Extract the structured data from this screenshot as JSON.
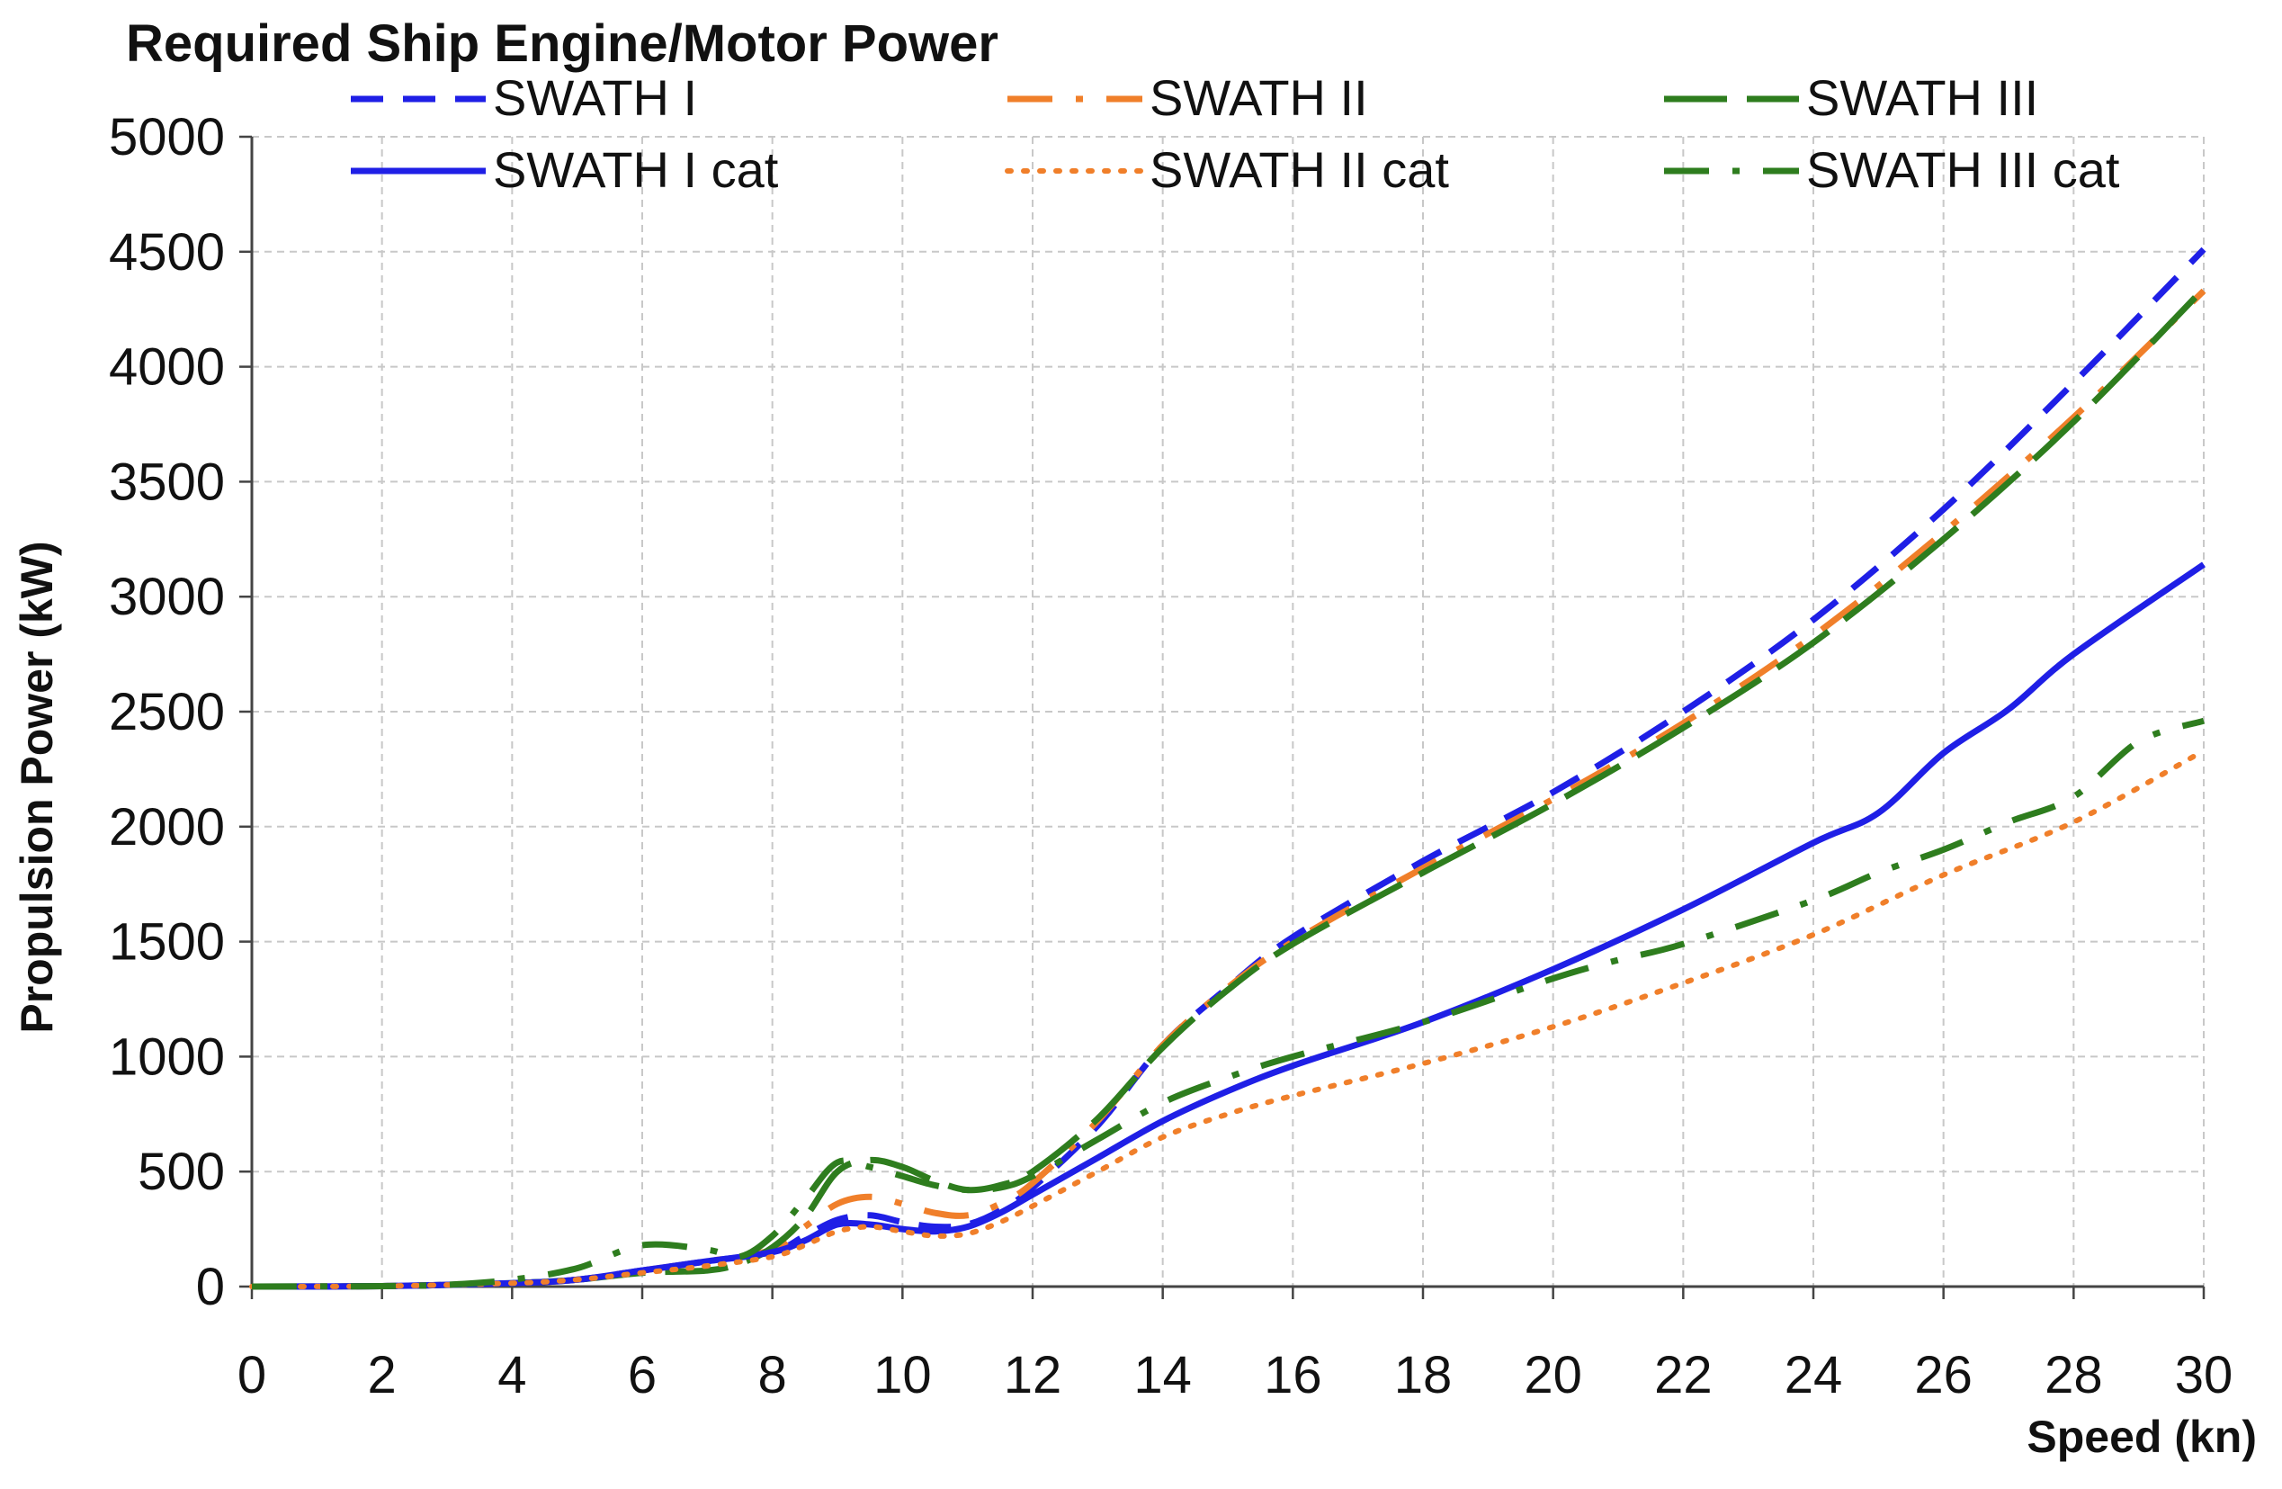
{
  "chart_data": {
    "type": "line",
    "title": "Required Ship Engine/Motor Power",
    "xlabel": "Speed (kn)",
    "ylabel": "Propulsion Power  (kW)",
    "xlim": [
      0,
      30
    ],
    "ylim": [
      0,
      5000
    ],
    "x_ticks": [
      "0",
      "2",
      "4",
      "6",
      "8",
      "10",
      "12",
      "14",
      "16",
      "18",
      "20",
      "22",
      "24",
      "26",
      "28",
      "30"
    ],
    "y_ticks": [
      "0",
      "500",
      "1000",
      "1500",
      "2000",
      "2500",
      "3000",
      "3500",
      "4000",
      "4500",
      "5000"
    ],
    "grid": true,
    "legend_position": "top",
    "series": [
      {
        "name": "SWATH I",
        "color": "#1f1fe6",
        "style": "dashed",
        "x": [
          0,
          2,
          4,
          5,
          6,
          7,
          8,
          8.5,
          9,
          9.5,
          10,
          10.5,
          11,
          11.5,
          12,
          13,
          14,
          15,
          16,
          18,
          20,
          22,
          24,
          26,
          28,
          30
        ],
        "y": [
          0,
          2,
          15,
          30,
          70,
          110,
          150,
          220,
          290,
          310,
          280,
          260,
          270,
          330,
          430,
          700,
          1050,
          1300,
          1520,
          1850,
          2150,
          2500,
          2900,
          3380,
          3930,
          4510
        ]
      },
      {
        "name": "SWATH II",
        "color": "#f07f2a",
        "style": "dash-dot",
        "x": [
          0,
          2,
          4,
          5,
          6,
          7,
          8,
          8.5,
          9,
          9.5,
          10,
          10.5,
          11,
          11.5,
          12,
          13,
          14,
          15,
          16,
          18,
          20,
          22,
          24,
          26,
          28,
          30
        ],
        "y": [
          0,
          2,
          15,
          30,
          70,
          110,
          160,
          260,
          360,
          390,
          360,
          320,
          310,
          360,
          450,
          720,
          1050,
          1300,
          1500,
          1820,
          2120,
          2450,
          2830,
          3280,
          3780,
          4330
        ]
      },
      {
        "name": "SWATH III",
        "color": "#2e7d1e",
        "style": "long-dash",
        "x": [
          0,
          2,
          4,
          5,
          6,
          7,
          7.5,
          8,
          8.5,
          9,
          9.5,
          10,
          10.5,
          11,
          11.5,
          12,
          13,
          14,
          15,
          16,
          18,
          20,
          22,
          24,
          26,
          28,
          30
        ],
        "y": [
          0,
          2,
          15,
          30,
          60,
          70,
          100,
          170,
          300,
          500,
          550,
          520,
          460,
          420,
          440,
          500,
          730,
          1040,
          1290,
          1490,
          1800,
          2100,
          2430,
          2800,
          3250,
          3760,
          4340
        ]
      },
      {
        "name": "SWATH I cat",
        "color": "#1f1fe6",
        "style": "solid",
        "x": [
          0,
          2,
          4,
          5,
          6,
          7,
          8,
          8.5,
          9,
          9.5,
          10,
          10.5,
          11,
          11.5,
          12,
          13,
          14,
          15,
          16,
          18,
          20,
          22,
          24,
          25,
          26,
          27,
          28,
          30
        ],
        "y": [
          0,
          2,
          15,
          30,
          70,
          110,
          150,
          200,
          270,
          270,
          250,
          240,
          260,
          320,
          400,
          560,
          720,
          850,
          960,
          1150,
          1380,
          1640,
          1930,
          2060,
          2320,
          2510,
          2750,
          3140
        ]
      },
      {
        "name": "SWATH II cat",
        "color": "#f07f2a",
        "style": "dotted",
        "x": [
          0,
          2,
          4,
          5,
          6,
          7,
          8,
          8.5,
          9,
          9.5,
          10,
          10.5,
          11,
          11.5,
          12,
          13,
          14,
          15,
          16,
          18,
          20,
          22,
          24,
          26,
          28,
          30
        ],
        "y": [
          0,
          2,
          15,
          30,
          60,
          90,
          130,
          180,
          240,
          260,
          240,
          220,
          230,
          280,
          350,
          500,
          650,
          750,
          830,
          970,
          1130,
          1320,
          1530,
          1790,
          2020,
          2330
        ]
      },
      {
        "name": "SWATH III cat",
        "color": "#2e7d1e",
        "style": "dash-dot",
        "x": [
          0,
          2,
          3,
          4,
          5,
          6,
          7,
          7.5,
          8,
          8.5,
          9,
          9.5,
          10,
          10.5,
          11,
          11.5,
          12,
          13,
          14,
          15,
          16,
          18,
          20,
          21,
          22,
          24,
          25,
          26,
          27,
          28,
          29,
          30
        ],
        "y": [
          0,
          2,
          8,
          30,
          80,
          180,
          160,
          130,
          220,
          380,
          540,
          520,
          480,
          440,
          420,
          430,
          480,
          640,
          800,
          910,
          1000,
          1150,
          1340,
          1420,
          1490,
          1680,
          1800,
          1900,
          2020,
          2130,
          2370,
          2460
        ]
      }
    ]
  }
}
